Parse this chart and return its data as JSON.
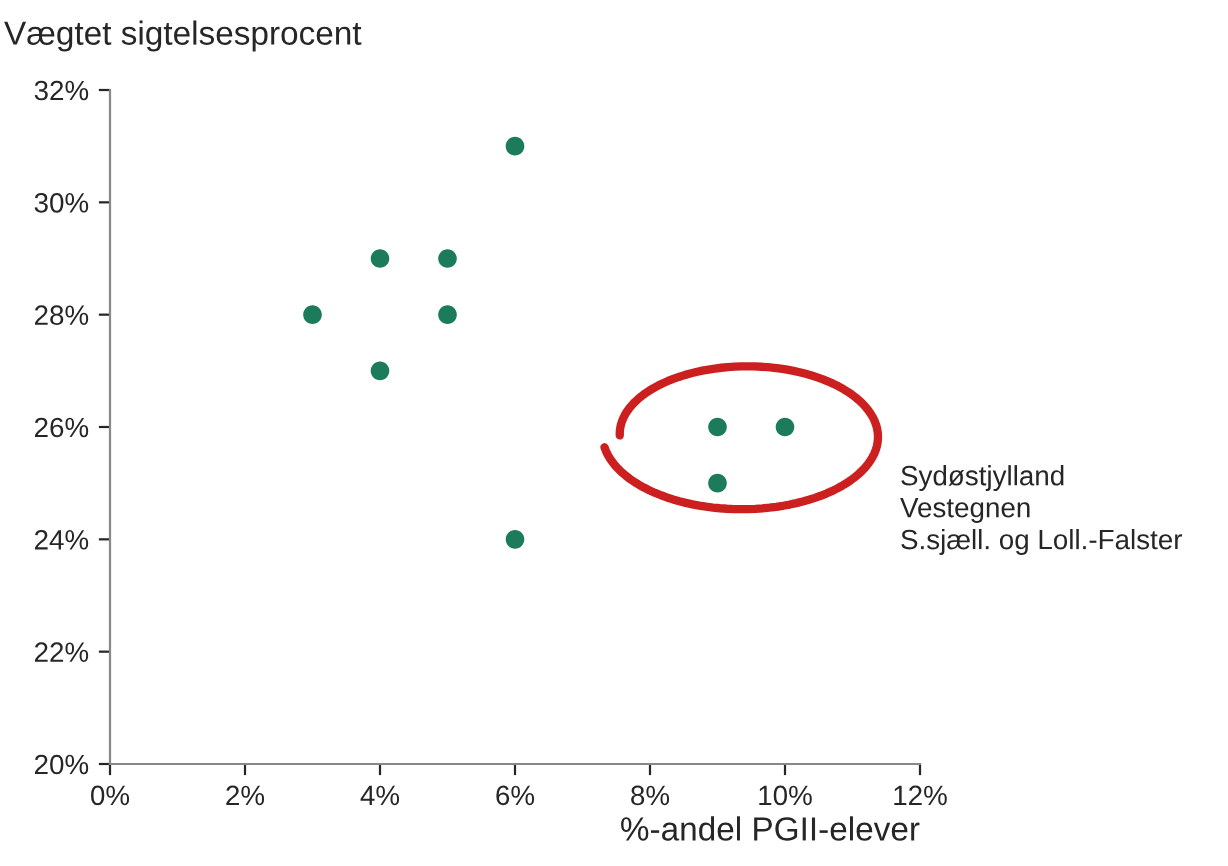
{
  "chart_data": {
    "type": "scatter",
    "ylabel": "Vægtet sigtelsesprocent",
    "xlabel": "%-andel PGII-elever",
    "x": [
      3,
      4,
      4,
      5,
      5,
      6,
      6,
      9,
      10,
      9
    ],
    "series": [
      {
        "color": "#1b7b5b",
        "values": [
          28,
          29,
          27,
          29,
          28,
          31,
          24,
          26,
          26,
          25
        ]
      }
    ],
    "xlim": [
      0,
      12
    ],
    "ylim": [
      20,
      32
    ],
    "xticks": [
      {
        "value": 0,
        "label": "0%"
      },
      {
        "value": 2,
        "label": "2%"
      },
      {
        "value": 4,
        "label": "4%"
      },
      {
        "value": 6,
        "label": "6%"
      },
      {
        "value": 8,
        "label": "8%"
      },
      {
        "value": 10,
        "label": "10%"
      },
      {
        "value": 12,
        "label": "12%"
      }
    ],
    "yticks": [
      {
        "value": 20,
        "label": "20%"
      },
      {
        "value": 22,
        "label": "22%"
      },
      {
        "value": 24,
        "label": "24%"
      },
      {
        "value": 26,
        "label": "26%"
      },
      {
        "value": 28,
        "label": "28%"
      },
      {
        "value": 30,
        "label": "30%"
      },
      {
        "value": 32,
        "label": "32%"
      }
    ],
    "annotations": [
      "Sydøstjylland\nVestegnen\nS.sjæll. og Loll.-Falster"
    ],
    "marker": "circle",
    "grid": false,
    "legend": false
  }
}
